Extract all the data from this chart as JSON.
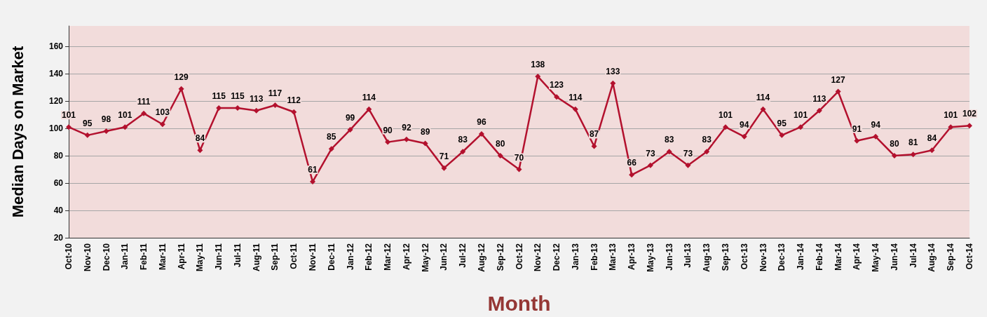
{
  "chart_data": {
    "type": "line",
    "xlabel": "Month",
    "ylabel": "Median Days on Market",
    "categories": [
      "Oct-10",
      "Nov-10",
      "Dec-10",
      "Jan-11",
      "Feb-11",
      "Mar-11",
      "Apr-11",
      "May-11",
      "Jun-11",
      "Jul-11",
      "Aug-11",
      "Sep-11",
      "Oct-11",
      "Nov-11",
      "Dec-11",
      "Jan-12",
      "Feb-12",
      "Mar-12",
      "Apr-12",
      "May-12",
      "Jun-12",
      "Jul-12",
      "Aug-12",
      "Sep-12",
      "Oct-12",
      "Nov-12",
      "Dec-12",
      "Jan-13",
      "Feb-13",
      "Mar-13",
      "Apr-13",
      "May-13",
      "Jun-13",
      "Jul-13",
      "Aug-13",
      "Sep-13",
      "Oct-13",
      "Nov-13",
      "Dec-13",
      "Jan-14",
      "Feb-14",
      "Mar-14",
      "Apr-14",
      "May-14",
      "Jun-14",
      "Jul-14",
      "Aug-14",
      "Sep-14",
      "Oct-14"
    ],
    "series": [
      {
        "color": "#b3112e",
        "values": [
          101,
          95,
          98,
          101,
          111,
          103,
          129,
          84,
          115,
          115,
          113,
          117,
          112,
          61,
          85,
          99,
          114,
          90,
          92,
          89,
          71,
          83,
          96,
          80,
          70,
          138,
          123,
          114,
          87,
          133,
          66,
          73,
          83,
          73,
          83,
          101,
          94,
          114,
          95,
          101,
          113,
          127,
          91,
          94,
          80,
          81,
          84,
          101,
          102
        ]
      }
    ],
    "ylim": [
      20,
      175
    ],
    "yticks": [
      20,
      40,
      60,
      80,
      100,
      120,
      140,
      160
    ],
    "grid": "y",
    "marker": "diamond",
    "line_style": "solid",
    "data_labels": true
  }
}
